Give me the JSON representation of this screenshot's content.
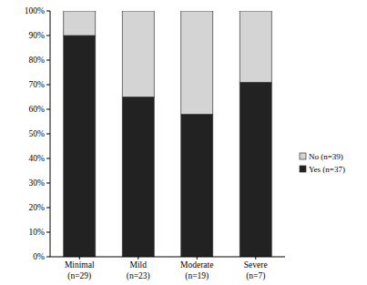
{
  "chart_data": {
    "type": "bar",
    "stacked": true,
    "categories": [
      "Minimal\n(n=29)",
      "Mild\n(n=23)",
      "Moderate\n(n=19)",
      "Severe\n(n=7)"
    ],
    "series": [
      {
        "name": "Yes (n=37)",
        "color": "#222222",
        "values": [
          90,
          65,
          58,
          71
        ]
      },
      {
        "name": "No (n=39)",
        "color": "#d4d4d4",
        "values": [
          10,
          35,
          42,
          29
        ]
      }
    ],
    "ylim": [
      0,
      100
    ],
    "yticks": [
      {
        "value": 0,
        "label": "0%"
      },
      {
        "value": 10,
        "label": "10%"
      },
      {
        "value": 20,
        "label": "20%"
      },
      {
        "value": 30,
        "label": "30%"
      },
      {
        "value": 40,
        "label": "40%"
      },
      {
        "value": 50,
        "label": "50%"
      },
      {
        "value": 60,
        "label": "60%"
      },
      {
        "value": 70,
        "label": "70%"
      },
      {
        "value": 80,
        "label": "80%"
      },
      {
        "value": 90,
        "label": "90%"
      },
      {
        "value": 100,
        "label": "100%"
      }
    ],
    "legend": "right",
    "grid": false
  }
}
